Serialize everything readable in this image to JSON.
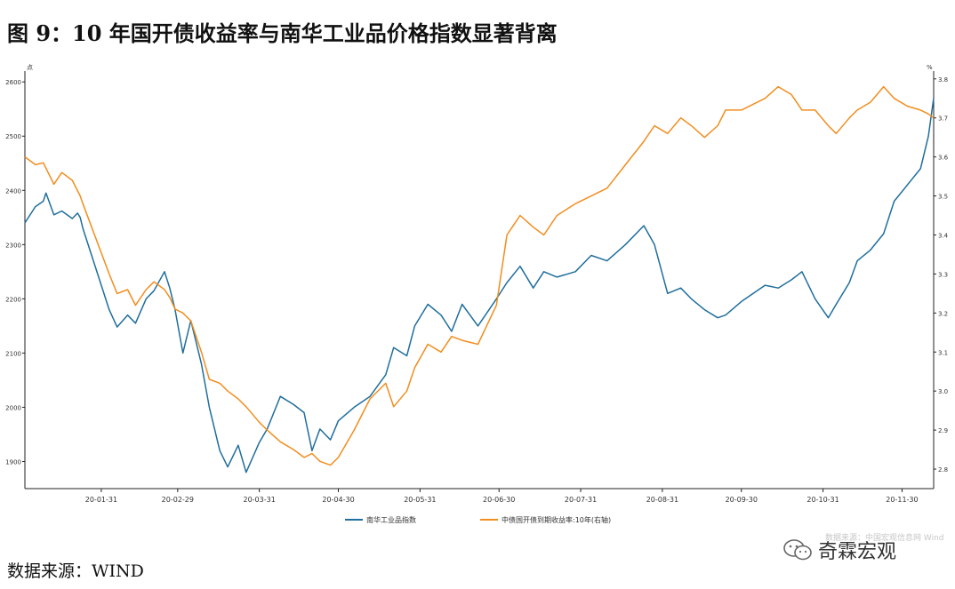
{
  "title": "图 9：10 年国开债收益率与南华工业品价格指数显著背离",
  "source": "数据来源：WIND",
  "watermark": "数据来源：中国宏观信息网 Wind",
  "brand": "奇霖宏观",
  "chart_data": {
    "type": "line",
    "y_unit_left": "点",
    "y_unit_right": "%",
    "xlim": [
      "2020-01-02",
      "2020-12-12"
    ],
    "ylim_left": [
      1850,
      2620
    ],
    "ylim_right": [
      2.75,
      3.82
    ],
    "yticks_left": [
      1900,
      2000,
      2100,
      2200,
      2300,
      2400,
      2500,
      2600
    ],
    "yticks_right": [
      2.8,
      2.9,
      3.0,
      3.1,
      3.2,
      3.3,
      3.4,
      3.5,
      3.6,
      3.7,
      3.8
    ],
    "xticks": [
      "20-01-31",
      "20-02-29",
      "20-03-31",
      "20-04-30",
      "20-05-31",
      "20-06-30",
      "20-07-31",
      "20-08-31",
      "20-09-30",
      "20-10-31",
      "20-11-30"
    ],
    "legend_position": "bottom",
    "colors": {
      "left": "#1f6e9c",
      "right": "#f28d1e"
    },
    "series": [
      {
        "name": "南华工业品指数",
        "axis": "left",
        "points": [
          [
            "2020-01-02",
            2340
          ],
          [
            "2020-01-06",
            2370
          ],
          [
            "2020-01-09",
            2380
          ],
          [
            "2020-01-10",
            2395
          ],
          [
            "2020-01-13",
            2355
          ],
          [
            "2020-01-16",
            2362
          ],
          [
            "2020-01-20",
            2348
          ],
          [
            "2020-01-22",
            2358
          ],
          [
            "2020-01-23",
            2350
          ],
          [
            "2020-01-24",
            2330
          ],
          [
            "2020-02-03",
            2180
          ],
          [
            "2020-02-06",
            2148
          ],
          [
            "2020-02-10",
            2170
          ],
          [
            "2020-02-13",
            2155
          ],
          [
            "2020-02-17",
            2200
          ],
          [
            "2020-02-20",
            2215
          ],
          [
            "2020-02-24",
            2250
          ],
          [
            "2020-02-26",
            2220
          ],
          [
            "2020-02-28",
            2180
          ],
          [
            "2020-03-02",
            2100
          ],
          [
            "2020-03-05",
            2160
          ],
          [
            "2020-03-09",
            2080
          ],
          [
            "2020-03-12",
            2000
          ],
          [
            "2020-03-16",
            1920
          ],
          [
            "2020-03-19",
            1890
          ],
          [
            "2020-03-23",
            1930
          ],
          [
            "2020-03-26",
            1880
          ],
          [
            "2020-03-31",
            1935
          ],
          [
            "2020-04-03",
            1960
          ],
          [
            "2020-04-08",
            2020
          ],
          [
            "2020-04-13",
            2005
          ],
          [
            "2020-04-17",
            1990
          ],
          [
            "2020-04-20",
            1920
          ],
          [
            "2020-04-23",
            1960
          ],
          [
            "2020-04-27",
            1940
          ],
          [
            "2020-04-30",
            1975
          ],
          [
            "2020-05-06",
            2000
          ],
          [
            "2020-05-12",
            2020
          ],
          [
            "2020-05-18",
            2060
          ],
          [
            "2020-05-21",
            2110
          ],
          [
            "2020-05-26",
            2095
          ],
          [
            "2020-05-29",
            2150
          ],
          [
            "2020-06-03",
            2190
          ],
          [
            "2020-06-08",
            2170
          ],
          [
            "2020-06-12",
            2140
          ],
          [
            "2020-06-16",
            2190
          ],
          [
            "2020-06-22",
            2150
          ],
          [
            "2020-06-29",
            2200
          ],
          [
            "2020-07-03",
            2230
          ],
          [
            "2020-07-08",
            2260
          ],
          [
            "2020-07-13",
            2220
          ],
          [
            "2020-07-17",
            2250
          ],
          [
            "2020-07-22",
            2240
          ],
          [
            "2020-07-29",
            2250
          ],
          [
            "2020-08-04",
            2280
          ],
          [
            "2020-08-10",
            2270
          ],
          [
            "2020-08-17",
            2300
          ],
          [
            "2020-08-24",
            2335
          ],
          [
            "2020-08-28",
            2300
          ],
          [
            "2020-09-02",
            2210
          ],
          [
            "2020-09-07",
            2220
          ],
          [
            "2020-09-11",
            2200
          ],
          [
            "2020-09-16",
            2180
          ],
          [
            "2020-09-21",
            2165
          ],
          [
            "2020-09-24",
            2170
          ],
          [
            "2020-09-30",
            2195
          ],
          [
            "2020-10-09",
            2225
          ],
          [
            "2020-10-14",
            2220
          ],
          [
            "2020-10-19",
            2235
          ],
          [
            "2020-10-23",
            2250
          ],
          [
            "2020-10-28",
            2200
          ],
          [
            "2020-11-02",
            2165
          ],
          [
            "2020-11-05",
            2190
          ],
          [
            "2020-11-10",
            2230
          ],
          [
            "2020-11-13",
            2270
          ],
          [
            "2020-11-18",
            2290
          ],
          [
            "2020-11-23",
            2320
          ],
          [
            "2020-11-27",
            2380
          ],
          [
            "2020-12-02",
            2410
          ],
          [
            "2020-12-07",
            2440
          ],
          [
            "2020-12-10",
            2500
          ],
          [
            "2020-12-12",
            2570
          ]
        ]
      },
      {
        "name": "中债国开债到期收益率:10年(右轴)",
        "axis": "right",
        "points": [
          [
            "2020-01-02",
            3.6
          ],
          [
            "2020-01-06",
            3.58
          ],
          [
            "2020-01-09",
            3.585
          ],
          [
            "2020-01-13",
            3.53
          ],
          [
            "2020-01-16",
            3.56
          ],
          [
            "2020-01-20",
            3.54
          ],
          [
            "2020-01-23",
            3.5
          ],
          [
            "2020-01-24",
            3.48
          ],
          [
            "2020-02-03",
            3.3
          ],
          [
            "2020-02-06",
            3.25
          ],
          [
            "2020-02-10",
            3.26
          ],
          [
            "2020-02-13",
            3.22
          ],
          [
            "2020-02-17",
            3.26
          ],
          [
            "2020-02-20",
            3.28
          ],
          [
            "2020-02-24",
            3.26
          ],
          [
            "2020-02-26",
            3.24
          ],
          [
            "2020-02-28",
            3.21
          ],
          [
            "2020-03-02",
            3.2
          ],
          [
            "2020-03-05",
            3.18
          ],
          [
            "2020-03-09",
            3.1
          ],
          [
            "2020-03-12",
            3.03
          ],
          [
            "2020-03-16",
            3.02
          ],
          [
            "2020-03-19",
            3.0
          ],
          [
            "2020-03-23",
            2.98
          ],
          [
            "2020-03-26",
            2.96
          ],
          [
            "2020-03-31",
            2.92
          ],
          [
            "2020-04-03",
            2.9
          ],
          [
            "2020-04-08",
            2.87
          ],
          [
            "2020-04-13",
            2.85
          ],
          [
            "2020-04-17",
            2.83
          ],
          [
            "2020-04-20",
            2.84
          ],
          [
            "2020-04-23",
            2.82
          ],
          [
            "2020-04-27",
            2.81
          ],
          [
            "2020-04-30",
            2.83
          ],
          [
            "2020-05-06",
            2.9
          ],
          [
            "2020-05-12",
            2.98
          ],
          [
            "2020-05-18",
            3.02
          ],
          [
            "2020-05-21",
            2.96
          ],
          [
            "2020-05-26",
            3.0
          ],
          [
            "2020-05-29",
            3.06
          ],
          [
            "2020-06-03",
            3.12
          ],
          [
            "2020-06-08",
            3.1
          ],
          [
            "2020-06-12",
            3.14
          ],
          [
            "2020-06-16",
            3.13
          ],
          [
            "2020-06-22",
            3.12
          ],
          [
            "2020-06-29",
            3.22
          ],
          [
            "2020-07-03",
            3.4
          ],
          [
            "2020-07-08",
            3.45
          ],
          [
            "2020-07-13",
            3.42
          ],
          [
            "2020-07-17",
            3.4
          ],
          [
            "2020-07-22",
            3.45
          ],
          [
            "2020-07-29",
            3.48
          ],
          [
            "2020-08-04",
            3.5
          ],
          [
            "2020-08-10",
            3.52
          ],
          [
            "2020-08-17",
            3.58
          ],
          [
            "2020-08-24",
            3.64
          ],
          [
            "2020-08-28",
            3.68
          ],
          [
            "2020-09-02",
            3.66
          ],
          [
            "2020-09-07",
            3.7
          ],
          [
            "2020-09-11",
            3.68
          ],
          [
            "2020-09-16",
            3.65
          ],
          [
            "2020-09-21",
            3.68
          ],
          [
            "2020-09-24",
            3.72
          ],
          [
            "2020-09-30",
            3.72
          ],
          [
            "2020-10-09",
            3.75
          ],
          [
            "2020-10-14",
            3.78
          ],
          [
            "2020-10-19",
            3.76
          ],
          [
            "2020-10-23",
            3.72
          ],
          [
            "2020-10-28",
            3.72
          ],
          [
            "2020-11-02",
            3.68
          ],
          [
            "2020-11-05",
            3.66
          ],
          [
            "2020-11-10",
            3.7
          ],
          [
            "2020-11-13",
            3.72
          ],
          [
            "2020-11-18",
            3.74
          ],
          [
            "2020-11-23",
            3.78
          ],
          [
            "2020-11-27",
            3.75
          ],
          [
            "2020-12-02",
            3.73
          ],
          [
            "2020-12-07",
            3.72
          ],
          [
            "2020-12-10",
            3.71
          ],
          [
            "2020-12-12",
            3.7
          ]
        ]
      }
    ]
  }
}
